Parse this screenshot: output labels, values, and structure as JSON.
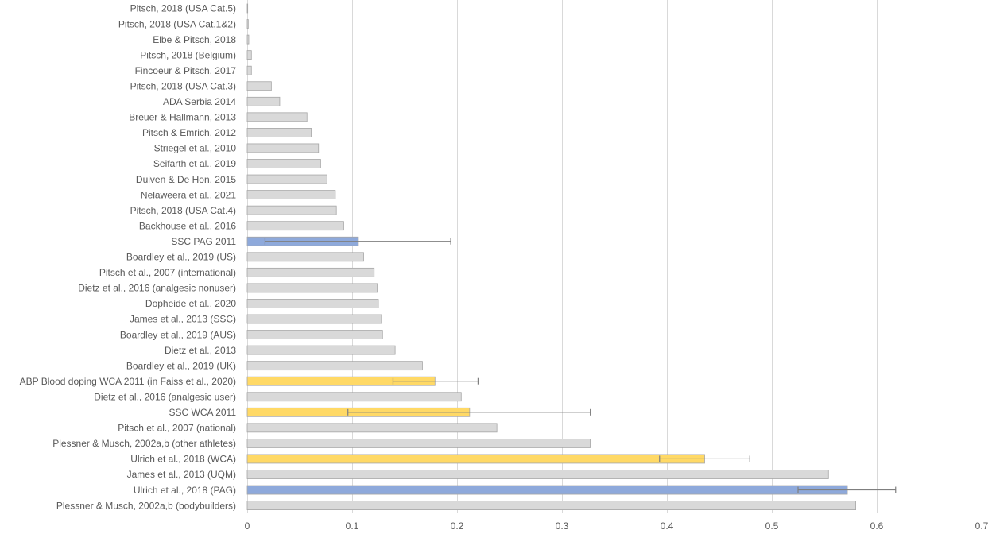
{
  "chart_data": {
    "type": "bar",
    "orientation": "horizontal",
    "title": "",
    "xlabel": "",
    "ylabel": "",
    "xlim": [
      0,
      0.7
    ],
    "x_ticks": [
      "0",
      "0.1",
      "0.2",
      "0.3",
      "0.4",
      "0.5",
      "0.6",
      "0.7"
    ],
    "grid": "vertical",
    "legend": "none",
    "colors": {
      "gray": "#d9d9d9",
      "blue": "#8ea9db",
      "yellow": "#ffd966",
      "bar_border": "#a6a6a6",
      "error_bar": "#7f7f7f"
    },
    "bars": [
      {
        "label": "Pitsch, 2018 (USA Cat.5)",
        "value": 0.0005,
        "color": "gray"
      },
      {
        "label": "Pitsch, 2018 (USA Cat.1&2)",
        "value": 0.001,
        "color": "gray"
      },
      {
        "label": "Elbe & Pitsch, 2018",
        "value": 0.0015,
        "color": "gray"
      },
      {
        "label": "Pitsch, 2018 (Belgium)",
        "value": 0.004,
        "color": "gray"
      },
      {
        "label": "Fincoeur & Pitsch, 2017",
        "value": 0.004,
        "color": "gray"
      },
      {
        "label": "Pitsch, 2018 (USA Cat.3)",
        "value": 0.023,
        "color": "gray"
      },
      {
        "label": "ADA Serbia 2014",
        "value": 0.031,
        "color": "gray"
      },
      {
        "label": "Breuer & Hallmann, 2013",
        "value": 0.057,
        "color": "gray"
      },
      {
        "label": "Pitsch & Emrich, 2012",
        "value": 0.061,
        "color": "gray"
      },
      {
        "label": "Striegel et al., 2010",
        "value": 0.068,
        "color": "gray"
      },
      {
        "label": "Seifarth et al., 2019",
        "value": 0.07,
        "color": "gray"
      },
      {
        "label": "Duiven & De Hon, 2015",
        "value": 0.076,
        "color": "gray"
      },
      {
        "label": "Nelaweera et al., 2021",
        "value": 0.084,
        "color": "gray"
      },
      {
        "label": "Pitsch, 2018 (USA Cat.4)",
        "value": 0.085,
        "color": "gray"
      },
      {
        "label": "Backhouse et al., 2016",
        "value": 0.092,
        "color": "gray"
      },
      {
        "label": "SSC PAG 2011",
        "value": 0.106,
        "color": "blue",
        "err_low": 0.017,
        "err_high": 0.194
      },
      {
        "label": "Boardley et al., 2019 (US)",
        "value": 0.111,
        "color": "gray"
      },
      {
        "label": "Pitsch et al., 2007 (international)",
        "value": 0.121,
        "color": "gray"
      },
      {
        "label": "Dietz et al., 2016 (analgesic nonuser)",
        "value": 0.124,
        "color": "gray"
      },
      {
        "label": "Dopheide et al., 2020",
        "value": 0.125,
        "color": "gray"
      },
      {
        "label": "James et al., 2013 (SSC)",
        "value": 0.128,
        "color": "gray"
      },
      {
        "label": "Boardley et al., 2019 (AUS)",
        "value": 0.129,
        "color": "gray"
      },
      {
        "label": "Dietz et al., 2013",
        "value": 0.141,
        "color": "gray"
      },
      {
        "label": "Boardley et al., 2019 (UK)",
        "value": 0.167,
        "color": "gray"
      },
      {
        "label": "ABP Blood doping WCA 2011 (in Faiss et al., 2020)",
        "value": 0.179,
        "color": "yellow",
        "err_low": 0.139,
        "err_high": 0.22
      },
      {
        "label": "Dietz et al., 2016 (analgesic user)",
        "value": 0.204,
        "color": "gray"
      },
      {
        "label": "SSC WCA 2011",
        "value": 0.212,
        "color": "yellow",
        "err_low": 0.096,
        "err_high": 0.327
      },
      {
        "label": "Pitsch et al., 2007 (national)",
        "value": 0.238,
        "color": "gray"
      },
      {
        "label": "Plessner & Musch, 2002a,b (other athletes)",
        "value": 0.327,
        "color": "gray"
      },
      {
        "label": "Ulrich et al., 2018 (WCA)",
        "value": 0.436,
        "color": "yellow",
        "err_low": 0.393,
        "err_high": 0.479
      },
      {
        "label": "James et al., 2013 (UQM)",
        "value": 0.554,
        "color": "gray"
      },
      {
        "label": "Ulrich et al., 2018 (PAG)",
        "value": 0.572,
        "color": "blue",
        "err_low": 0.525,
        "err_high": 0.618
      },
      {
        "label": "Plessner & Musch, 2002a,b (bodybuilders)",
        "value": 0.58,
        "color": "gray"
      }
    ]
  }
}
